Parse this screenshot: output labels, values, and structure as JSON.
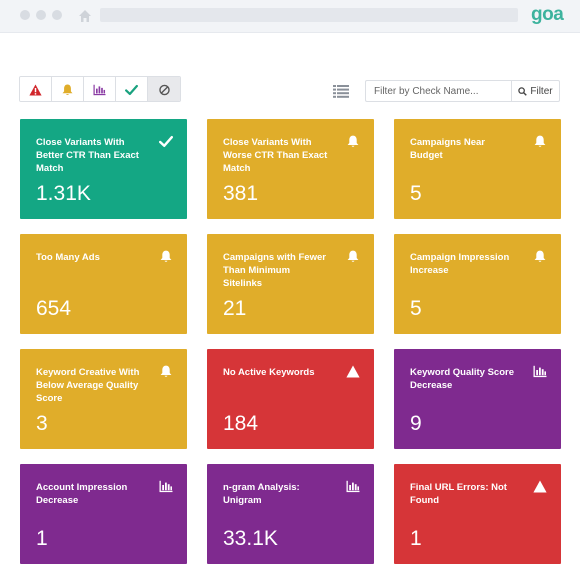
{
  "app": {
    "logo": "goa"
  },
  "toolbar": {
    "filters": [
      {
        "name": "filter-alert-button",
        "icon": "warning-icon",
        "active": false
      },
      {
        "name": "filter-bell-button",
        "icon": "bell-icon",
        "active": false
      },
      {
        "name": "filter-chart-button",
        "icon": "bar-chart-icon",
        "active": false
      },
      {
        "name": "filter-check-button",
        "icon": "check-icon",
        "active": false
      },
      {
        "name": "filter-disabled-button",
        "icon": "ban-icon",
        "active": true
      }
    ],
    "search_placeholder": "Filter by Check Name...",
    "filter_label": "Filter"
  },
  "colors": {
    "green": "#14a784",
    "yellow": "#e0ad2a",
    "red": "#d63538",
    "purple": "#7f2a8f",
    "warning_red": "#d1262b",
    "bell_yellow": "#e0ad2a",
    "chart_purple": "#8a3aa3",
    "check_green": "#1aa27f"
  },
  "cards": [
    {
      "title": "Close Variants With Better CTR Than Exact Match",
      "value": "1.31K",
      "color": "green",
      "icon": "check-icon"
    },
    {
      "title": "Close Variants With Worse CTR Than Exact Match",
      "value": "381",
      "color": "yellow",
      "icon": "bell-icon"
    },
    {
      "title": "Campaigns Near Budget",
      "value": "5",
      "color": "yellow",
      "icon": "bell-icon"
    },
    {
      "title": "Too Many Ads",
      "value": "654",
      "color": "yellow",
      "icon": "bell-icon"
    },
    {
      "title": "Campaigns with Fewer Than Minimum Sitelinks",
      "value": "21",
      "color": "yellow",
      "icon": "bell-icon"
    },
    {
      "title": "Campaign Impression Increase",
      "value": "5",
      "color": "yellow",
      "icon": "bell-icon"
    },
    {
      "title": "Keyword Creative With Below Average Quality Score",
      "value": "3",
      "color": "yellow",
      "icon": "bell-icon"
    },
    {
      "title": "No Active Keywords",
      "value": "184",
      "color": "red",
      "icon": "warning-icon"
    },
    {
      "title": "Keyword Quality Score Decrease",
      "value": "9",
      "color": "purple",
      "icon": "bar-chart-icon"
    },
    {
      "title": "Account Impression Decrease",
      "value": "1",
      "color": "purple",
      "icon": "bar-chart-icon"
    },
    {
      "title": "n-gram Analysis: Unigram",
      "value": "33.1K",
      "color": "purple",
      "icon": "bar-chart-icon"
    },
    {
      "title": "Final URL Errors: Not Found",
      "value": "1",
      "color": "red",
      "icon": "warning-icon"
    }
  ]
}
